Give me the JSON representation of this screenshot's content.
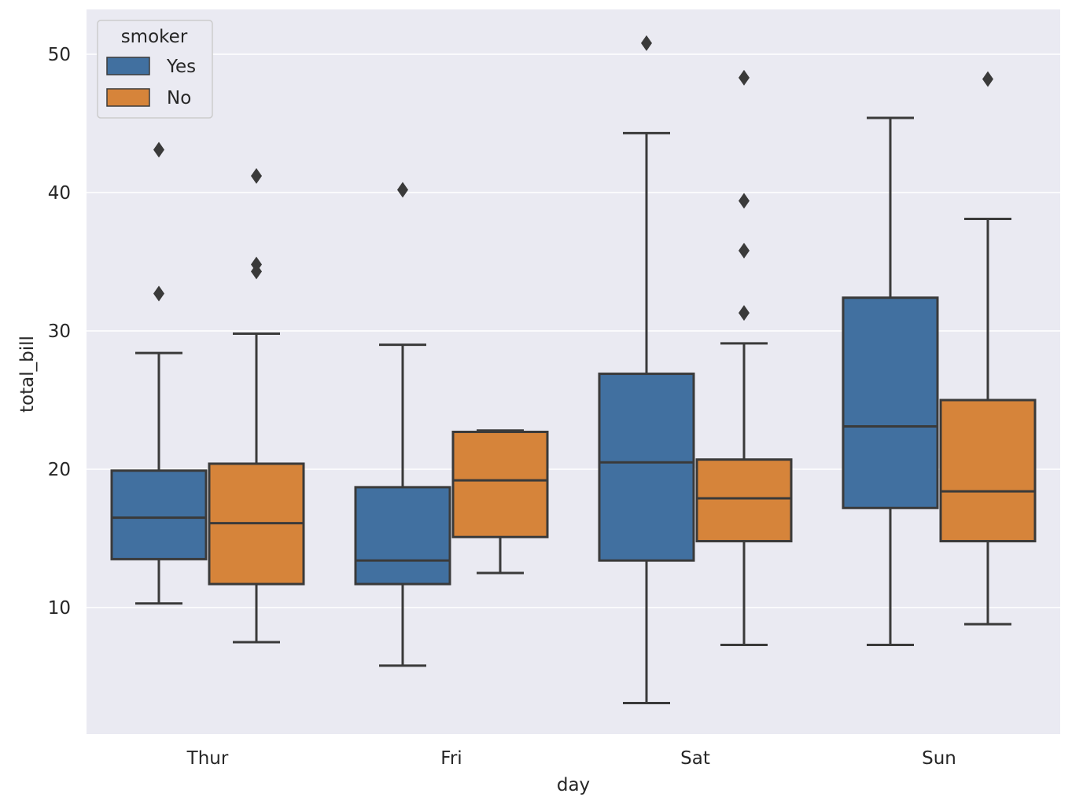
{
  "chart_data": {
    "type": "box",
    "title": "",
    "xlabel": "day",
    "ylabel": "total_bill",
    "categories": [
      "Thur",
      "Fri",
      "Sat",
      "Sun"
    ],
    "ylim": [
      0,
      54
    ],
    "yticks": [
      10,
      20,
      30,
      40,
      50
    ],
    "grid": true,
    "legend": {
      "title": "smoker",
      "position": "top-left"
    },
    "series": [
      {
        "name": "Yes",
        "color": "#4170a0",
        "boxes": [
          {
            "category": "Thur",
            "whisker_low": 10.3,
            "q1": 13.5,
            "median": 16.5,
            "q3": 19.9,
            "whisker_high": 28.4,
            "outliers": [
              32.7,
              43.1
            ]
          },
          {
            "category": "Fri",
            "whisker_low": 5.8,
            "q1": 11.7,
            "median": 13.4,
            "q3": 18.7,
            "whisker_high": 29.0,
            "outliers": [
              40.2
            ]
          },
          {
            "category": "Sat",
            "whisker_low": 3.1,
            "q1": 13.4,
            "median": 20.5,
            "q3": 26.9,
            "whisker_high": 44.3,
            "outliers": [
              50.8
            ]
          },
          {
            "category": "Sun",
            "whisker_low": 7.3,
            "q1": 17.2,
            "median": 23.1,
            "q3": 32.4,
            "whisker_high": 45.4,
            "outliers": []
          }
        ]
      },
      {
        "name": "No",
        "color": "#d6843a",
        "boxes": [
          {
            "category": "Thur",
            "whisker_low": 7.5,
            "q1": 11.7,
            "median": 16.1,
            "q3": 20.4,
            "whisker_high": 29.8,
            "outliers": [
              34.3,
              34.8,
              41.2
            ]
          },
          {
            "category": "Fri",
            "whisker_low": 12.5,
            "q1": 15.1,
            "median": 19.2,
            "q3": 22.7,
            "whisker_high": 22.8,
            "outliers": []
          },
          {
            "category": "Sat",
            "whisker_low": 7.3,
            "q1": 14.8,
            "median": 17.9,
            "q3": 20.7,
            "whisker_high": 29.1,
            "outliers": [
              31.3,
              35.8,
              39.4,
              48.3
            ]
          },
          {
            "category": "Sun",
            "whisker_low": 8.8,
            "q1": 14.8,
            "median": 18.4,
            "q3": 25.0,
            "whisker_high": 38.1,
            "outliers": [
              48.2
            ]
          }
        ]
      }
    ]
  }
}
